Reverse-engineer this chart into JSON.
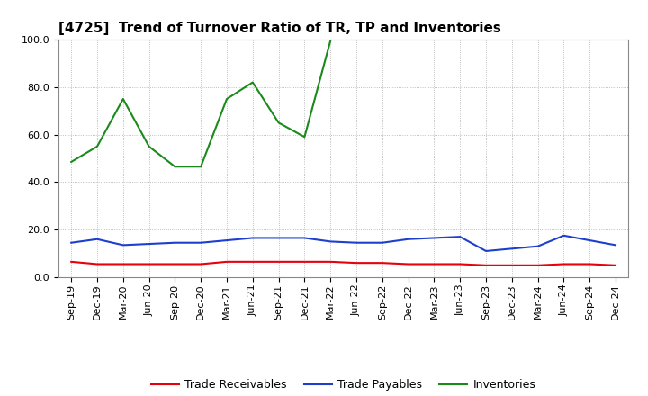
{
  "title": "[4725]  Trend of Turnover Ratio of TR, TP and Inventories",
  "labels": [
    "Sep-19",
    "Dec-19",
    "Mar-20",
    "Jun-20",
    "Sep-20",
    "Dec-20",
    "Mar-21",
    "Jun-21",
    "Sep-21",
    "Dec-21",
    "Mar-22",
    "Jun-22",
    "Sep-22",
    "Dec-22",
    "Mar-23",
    "Jun-23",
    "Sep-23",
    "Dec-23",
    "Mar-24",
    "Jun-24",
    "Sep-24",
    "Dec-24"
  ],
  "trade_receivables": [
    6.5,
    5.5,
    5.5,
    5.5,
    5.5,
    5.5,
    6.5,
    6.5,
    6.5,
    6.5,
    6.5,
    6.0,
    6.0,
    5.5,
    5.5,
    5.5,
    5.0,
    5.0,
    5.0,
    5.5,
    5.5,
    5.0
  ],
  "trade_payables": [
    14.5,
    16.0,
    13.5,
    14.0,
    14.5,
    14.5,
    15.5,
    16.5,
    16.5,
    16.5,
    15.0,
    14.5,
    14.5,
    16.0,
    16.5,
    17.0,
    11.0,
    12.0,
    13.0,
    17.5,
    15.5,
    13.5
  ],
  "inventories": [
    48.5,
    55.0,
    75.0,
    55.0,
    46.5,
    46.5,
    75.0,
    82.0,
    65.0,
    59.0,
    99.5,
    null,
    null,
    null,
    null,
    null,
    null,
    null,
    null,
    null,
    null,
    null
  ],
  "tr_color": "#e8000a",
  "tp_color": "#1e3fce",
  "inv_color": "#1a8a1a",
  "ylim": [
    0,
    100
  ],
  "yticks": [
    0.0,
    20.0,
    40.0,
    60.0,
    80.0,
    100.0
  ],
  "legend_labels": [
    "Trade Receivables",
    "Trade Payables",
    "Inventories"
  ],
  "bg_color": "#ffffff",
  "grid_color": "#aaaaaa",
  "title_fontsize": 11,
  "tick_fontsize": 8,
  "legend_fontsize": 9
}
